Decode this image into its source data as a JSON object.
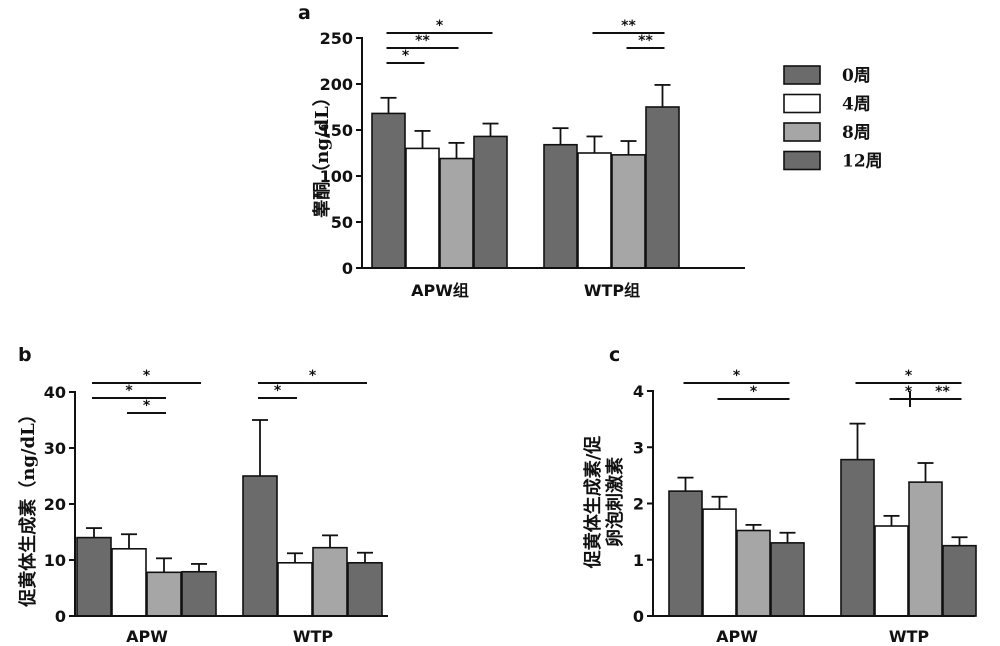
{
  "legend": {
    "entries": [
      {
        "label": "0周",
        "color": "#6b6b6b"
      },
      {
        "label": "4周",
        "color": "#ffffff"
      },
      {
        "label": "8周",
        "color": "#a6a6a6"
      },
      {
        "label": "12周",
        "color": "#6b6b6b"
      }
    ]
  },
  "chart_data": [
    {
      "id": "a",
      "type": "bar",
      "panel_label": "a",
      "ylabel": "睾酮（ng/dL）",
      "ylim": [
        0,
        250
      ],
      "yticks": [
        "0",
        "50",
        "100",
        "150",
        "200",
        "250"
      ],
      "categories": [
        "APW组",
        "WTP组"
      ],
      "series": [
        {
          "name": "0周",
          "values": [
            168,
            134
          ],
          "errors": [
            17,
            18
          ]
        },
        {
          "name": "4周",
          "values": [
            130,
            125
          ],
          "errors": [
            19,
            18
          ]
        },
        {
          "name": "8周",
          "values": [
            119,
            123
          ],
          "errors": [
            17,
            15
          ]
        },
        {
          "name": "12周",
          "values": [
            143,
            175
          ],
          "errors": [
            14,
            24
          ]
        }
      ],
      "significance": [
        {
          "group": 0,
          "from": 0,
          "to": 3,
          "label": "*",
          "level": 0
        },
        {
          "group": 0,
          "from": 0,
          "to": 2,
          "label": "**",
          "level": 1
        },
        {
          "group": 0,
          "from": 0,
          "to": 1,
          "label": "*",
          "level": 2
        },
        {
          "group": 1,
          "from": 1,
          "to": 3,
          "label": "**",
          "level": 0
        },
        {
          "group": 1,
          "from": 2,
          "to": 3,
          "label": "**",
          "level": 1
        }
      ]
    },
    {
      "id": "b",
      "type": "bar",
      "panel_label": "b",
      "ylabel": "促黄体生成素（ng/dL）",
      "ylim": [
        0,
        40
      ],
      "yticks": [
        "0",
        "10",
        "20",
        "30",
        "40"
      ],
      "categories": [
        "APW",
        "WTP"
      ],
      "series": [
        {
          "name": "0周",
          "values": [
            14,
            25
          ],
          "errors": [
            1.7,
            10
          ]
        },
        {
          "name": "4周",
          "values": [
            12,
            9.5
          ],
          "errors": [
            2.6,
            1.7
          ]
        },
        {
          "name": "8周",
          "values": [
            7.8,
            12.2
          ],
          "errors": [
            2.5,
            2.2
          ]
        },
        {
          "name": "12周",
          "values": [
            7.9,
            9.5
          ],
          "errors": [
            1.4,
            1.8
          ]
        }
      ],
      "significance": [
        {
          "group": 0,
          "from": 0,
          "to": 3,
          "label": "*",
          "level": 0
        },
        {
          "group": 0,
          "from": 0,
          "to": 2,
          "label": "*",
          "level": 1
        },
        {
          "group": 0,
          "from": 1,
          "to": 2,
          "label": "*",
          "level": 2
        },
        {
          "group": 1,
          "from": 0,
          "to": 3,
          "label": "*",
          "level": 0
        },
        {
          "group": 1,
          "from": 0,
          "to": 1,
          "label": "*",
          "level": 1
        }
      ]
    },
    {
      "id": "c",
      "type": "bar",
      "panel_label": "c",
      "ylabel": "促黄体生成素/促卵泡刺激素",
      "ylabel_lines": [
        "促黄体生成素/促",
        "卵泡刺激素"
      ],
      "ylim": [
        0,
        4
      ],
      "yticks": [
        "0",
        "1",
        "2",
        "3",
        "4"
      ],
      "categories": [
        "APW",
        "WTP"
      ],
      "series": [
        {
          "name": "0周",
          "values": [
            2.22,
            2.78
          ],
          "errors": [
            0.24,
            0.64
          ]
        },
        {
          "name": "4周",
          "values": [
            1.9,
            1.6
          ],
          "errors": [
            0.22,
            0.18
          ]
        },
        {
          "name": "8周",
          "values": [
            1.52,
            2.38
          ],
          "errors": [
            0.1,
            0.34
          ]
        },
        {
          "name": "12周",
          "values": [
            1.3,
            1.25
          ],
          "errors": [
            0.18,
            0.15
          ]
        }
      ],
      "significance": [
        {
          "group": 0,
          "from": 0,
          "to": 3,
          "label": "*",
          "level": 0
        },
        {
          "group": 0,
          "from": 1,
          "to": 3,
          "label": "*",
          "level": 1
        },
        {
          "group": 1,
          "from": 0,
          "to": 3,
          "label": "*",
          "level": 0
        },
        {
          "group": 1,
          "from": 1,
          "to": 2,
          "label": "*",
          "level": 1
        },
        {
          "group": 1,
          "from": 2,
          "to": 3,
          "label": "**",
          "level": 1
        }
      ]
    }
  ]
}
